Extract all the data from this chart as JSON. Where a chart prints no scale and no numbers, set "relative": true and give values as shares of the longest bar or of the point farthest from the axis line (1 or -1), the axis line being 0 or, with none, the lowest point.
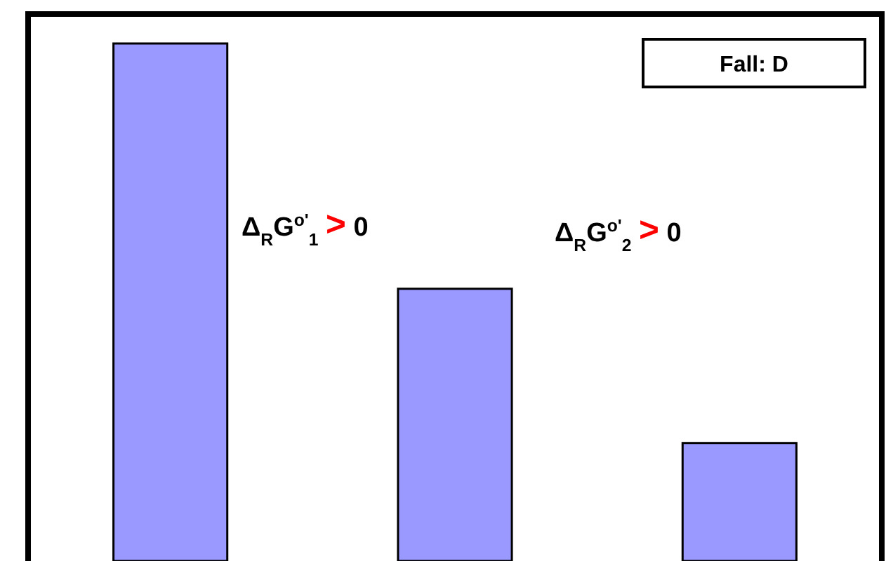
{
  "chart_data": {
    "type": "bar",
    "relative": true,
    "categories": [
      null,
      null,
      null
    ],
    "values": [
      1,
      0.526,
      0.228
    ],
    "color": "#9999ff",
    "annotations": [
      "Fall: D",
      "Δ$_{R}$G$^{o'}$$_{1}$ > 0",
      "Δ$_{R}$G$^{o'}$$_{2}$ > 0"
    ]
  }
}
